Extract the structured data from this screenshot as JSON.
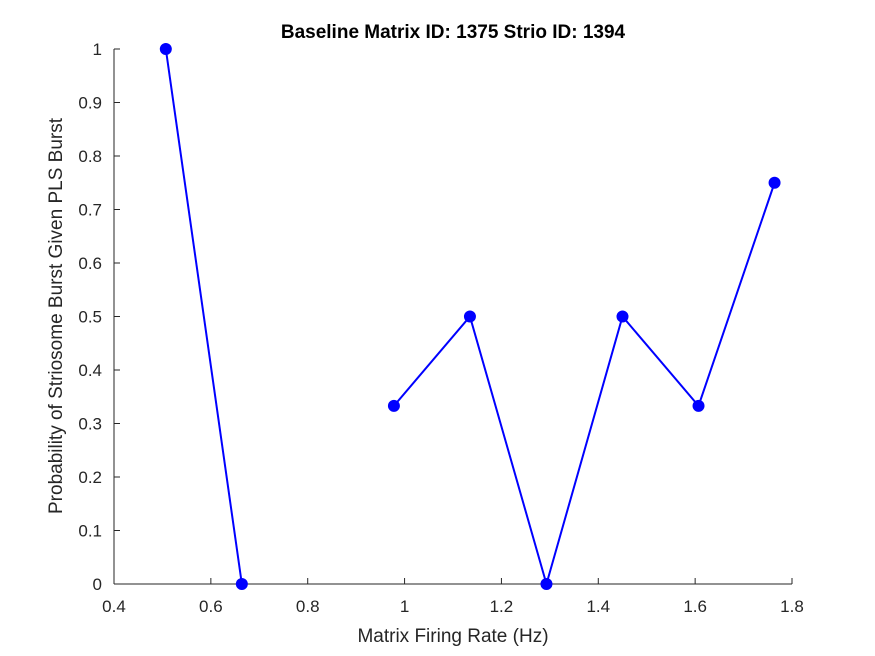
{
  "chart_data": {
    "type": "line",
    "title": "Baseline Matrix ID: 1375 Strio ID: 1394",
    "xlabel": "Matrix Firing Rate (Hz)",
    "ylabel": "Probability of Striosome Burst Given PLS Burst",
    "xlim": [
      0.4,
      1.8
    ],
    "ylim": [
      0,
      1
    ],
    "xticks": [
      0.4,
      0.6,
      0.8,
      1,
      1.2,
      1.4,
      1.6,
      1.8
    ],
    "xtick_labels": [
      "0.4",
      "0.6",
      "0.8",
      "1",
      "1.2",
      "1.4",
      "1.6",
      "1.8"
    ],
    "yticks": [
      0,
      0.1,
      0.2,
      0.3,
      0.4,
      0.5,
      0.6,
      0.7,
      0.8,
      0.9,
      1
    ],
    "ytick_labels": [
      "0",
      "0.1",
      "0.2",
      "0.3",
      "0.4",
      "0.5",
      "0.6",
      "0.7",
      "0.8",
      "0.9",
      "1"
    ],
    "grid": false,
    "series": [
      {
        "color": "#0000ff",
        "marker": "circle",
        "segments": [
          {
            "x": [
              0.507,
              0.664
            ],
            "y": [
              1,
              0
            ]
          },
          {
            "x": [
              0.978,
              1.135,
              1.293,
              1.45,
              1.607,
              1.764
            ],
            "y": [
              0.333,
              0.5,
              0,
              0.5,
              0.333,
              0.75
            ]
          }
        ]
      }
    ]
  }
}
